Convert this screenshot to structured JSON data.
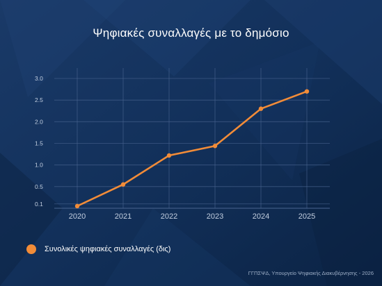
{
  "title": "Ψηφιακές συναλλαγές με το δημόσιο",
  "footer": "ΓΓΠΣΨΔ, Υπουργείο Ψηφιακής Διακυβέρνησης - 2026",
  "colors": {
    "background": "#0f2a4f",
    "series": "#f28c38",
    "grid": "#4a6590",
    "tick_text": "#c3cfe0"
  },
  "chart_data": {
    "type": "line",
    "title": "Ψηφιακές συναλλαγές με το δημόσιο",
    "xlabel": "",
    "ylabel": "",
    "x": [
      "2020",
      "2021",
      "2022",
      "2023",
      "2024",
      "2025"
    ],
    "series": [
      {
        "name": "Συνολικές ψηφιακές συναλλαγές (δις)",
        "values": [
          0.05,
          0.55,
          1.22,
          1.44,
          2.3,
          2.7
        ]
      }
    ],
    "yticks": [
      "0.1",
      "0.5",
      "1.0",
      "1.5",
      "2.0",
      "2.5",
      "3.0"
    ],
    "ylim": [
      0,
      3.0
    ],
    "grid": true,
    "legend": "bottom-left"
  }
}
